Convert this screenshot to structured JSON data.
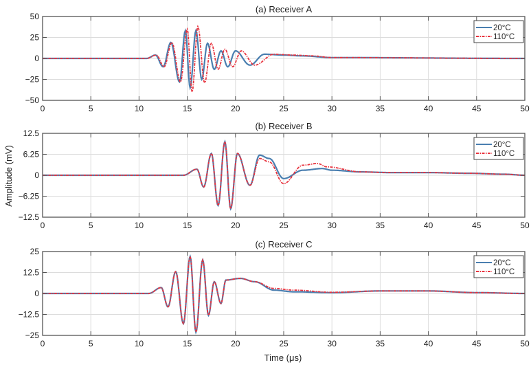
{
  "figure": {
    "ylabel": "Amplitude (mV)",
    "xlabel": "Time (μs)"
  },
  "colors": {
    "series_20C": "#4a7fb0",
    "series_110C": "#e8343f",
    "grid": "#dcdcdc",
    "axis": "#555555"
  },
  "chart_data": [
    {
      "type": "line",
      "title": "(a) Receiver A",
      "xlabel": "",
      "ylabel": "",
      "xlim": [
        0,
        50
      ],
      "ylim": [
        -50,
        50
      ],
      "xticks": [
        "0",
        "5",
        "10",
        "15",
        "20",
        "25",
        "30",
        "35",
        "40",
        "45",
        "50"
      ],
      "yticks": [
        "50",
        "25",
        "0",
        "−25",
        "−50"
      ],
      "grid": true,
      "legend": [
        "20°C",
        "110°C"
      ],
      "legend_position": "top-right",
      "signal": {
        "onset_us": 10.8,
        "peak_time_us": 15.2,
        "peak_abs": 38,
        "freq_mhz": 0.72
      },
      "series": [
        {
          "name": "20°C",
          "style": "solid",
          "envelope_peaks": [
            [
              11.7,
              4
            ],
            [
              12.5,
              -10
            ],
            [
              13.3,
              19
            ],
            [
              14.2,
              -28
            ],
            [
              14.8,
              33
            ],
            [
              15.3,
              -35
            ],
            [
              15.9,
              33
            ],
            [
              16.5,
              -25
            ],
            [
              17.1,
              18
            ],
            [
              17.8,
              -13
            ],
            [
              18.5,
              9
            ],
            [
              19.2,
              -10
            ],
            [
              20.0,
              9
            ],
            [
              21.5,
              -8
            ],
            [
              23.0,
              5
            ],
            [
              25.0,
              4
            ],
            [
              27.0,
              3
            ],
            [
              30,
              1
            ]
          ]
        },
        {
          "name": "110°C",
          "style": "dashdot",
          "envelope_peaks": [
            [
              11.8,
              4
            ],
            [
              12.6,
              -10
            ],
            [
              13.4,
              19
            ],
            [
              14.3,
              -28
            ],
            [
              15.0,
              35
            ],
            [
              15.5,
              -40
            ],
            [
              16.1,
              38
            ],
            [
              16.8,
              -29
            ],
            [
              17.5,
              18
            ],
            [
              18.2,
              -13
            ],
            [
              18.9,
              11
            ],
            [
              19.7,
              -10
            ],
            [
              20.6,
              9
            ],
            [
              22.0,
              -8
            ],
            [
              24.0,
              5
            ],
            [
              26.0,
              4
            ],
            [
              28.0,
              3
            ],
            [
              30,
              1
            ]
          ]
        }
      ]
    },
    {
      "type": "line",
      "title": "(b) Receiver B",
      "xlabel": "",
      "ylabel": "Amplitude (mV)",
      "xlim": [
        0,
        50
      ],
      "ylim": [
        -12.5,
        12.5
      ],
      "xticks": [
        "0",
        "5",
        "10",
        "15",
        "20",
        "25",
        "30",
        "35",
        "40",
        "45",
        "50"
      ],
      "yticks": [
        "12.5",
        "6.25",
        "0",
        "−6.25",
        "−12.5"
      ],
      "grid": true,
      "legend": [
        "20°C",
        "110°C"
      ],
      "legend_position": "top-right",
      "signal": {
        "onset_us": 14.6,
        "peak_time_us": 18.8,
        "peak_abs": 10,
        "freq_mhz": 0.75
      },
      "series": [
        {
          "name": "20°C",
          "style": "solid",
          "envelope_peaks": [
            [
              16.0,
              1.8
            ],
            [
              16.7,
              -3.5
            ],
            [
              17.5,
              6.5
            ],
            [
              18.2,
              -9
            ],
            [
              18.9,
              10
            ],
            [
              19.5,
              -10
            ],
            [
              20.2,
              6.5
            ],
            [
              21.5,
              -3
            ],
            [
              22.5,
              6
            ],
            [
              23.5,
              5
            ],
            [
              25,
              -1
            ],
            [
              27,
              1.5
            ],
            [
              29,
              2
            ],
            [
              30,
              1.5
            ],
            [
              33,
              1
            ],
            [
              36,
              0.8
            ],
            [
              40,
              0.8
            ],
            [
              44,
              0.6
            ],
            [
              48,
              0.3
            ]
          ]
        },
        {
          "name": "110°C",
          "style": "dashdot",
          "envelope_peaks": [
            [
              16.0,
              1.8
            ],
            [
              16.7,
              -3.5
            ],
            [
              17.5,
              6.5
            ],
            [
              18.2,
              -9
            ],
            [
              18.9,
              10
            ],
            [
              19.5,
              -10
            ],
            [
              20.2,
              6.5
            ],
            [
              21.5,
              -3
            ],
            [
              22.5,
              5
            ],
            [
              23.5,
              4
            ],
            [
              25,
              -2.5
            ],
            [
              27,
              3
            ],
            [
              28.5,
              3.5
            ],
            [
              29.5,
              2.5
            ],
            [
              33,
              1
            ],
            [
              36,
              0.8
            ],
            [
              40,
              0.8
            ],
            [
              44,
              0.6
            ],
            [
              48,
              0.3
            ]
          ]
        }
      ]
    },
    {
      "type": "line",
      "title": "(c) Receiver C",
      "xlabel": "Time (μs)",
      "ylabel": "",
      "xlim": [
        0,
        50
      ],
      "ylim": [
        -25,
        25
      ],
      "xticks": [
        "0",
        "5",
        "10",
        "15",
        "20",
        "25",
        "30",
        "35",
        "40",
        "45",
        "50"
      ],
      "yticks": [
        "25",
        "12.5",
        "0",
        "−12.5",
        "−25"
      ],
      "grid": true,
      "legend": [
        "20°C",
        "110°C"
      ],
      "legend_position": "top-right",
      "signal": {
        "onset_us": 11.0,
        "peak_time_us": 15.3,
        "peak_abs": 22,
        "freq_mhz": 0.75
      },
      "series": [
        {
          "name": "20°C",
          "style": "solid",
          "envelope_peaks": [
            [
              12.3,
              3.5
            ],
            [
              13.0,
              -8
            ],
            [
              13.8,
              13
            ],
            [
              14.6,
              -18
            ],
            [
              15.3,
              22
            ],
            [
              15.9,
              -23
            ],
            [
              16.6,
              20
            ],
            [
              17.2,
              -13
            ],
            [
              17.8,
              7
            ],
            [
              18.5,
              -6
            ],
            [
              19.0,
              8
            ],
            [
              20.5,
              9
            ],
            [
              22.0,
              7
            ],
            [
              24,
              2
            ],
            [
              26,
              1
            ],
            [
              30,
              0.5
            ],
            [
              35,
              1.5
            ],
            [
              40,
              1.5
            ],
            [
              45,
              0.5
            ]
          ]
        },
        {
          "name": "110°C",
          "style": "dashdot",
          "envelope_peaks": [
            [
              12.3,
              3.5
            ],
            [
              13.0,
              -8
            ],
            [
              13.8,
              13
            ],
            [
              14.6,
              -18
            ],
            [
              15.3,
              22
            ],
            [
              15.9,
              -23
            ],
            [
              16.6,
              20
            ],
            [
              17.2,
              -13
            ],
            [
              17.8,
              7
            ],
            [
              18.5,
              -6
            ],
            [
              19.0,
              8
            ],
            [
              20.5,
              9
            ],
            [
              22.0,
              7
            ],
            [
              24,
              3
            ],
            [
              26,
              2
            ],
            [
              30,
              0.7
            ],
            [
              35,
              1.5
            ],
            [
              40,
              1.5
            ],
            [
              45,
              0.5
            ]
          ]
        }
      ]
    }
  ]
}
